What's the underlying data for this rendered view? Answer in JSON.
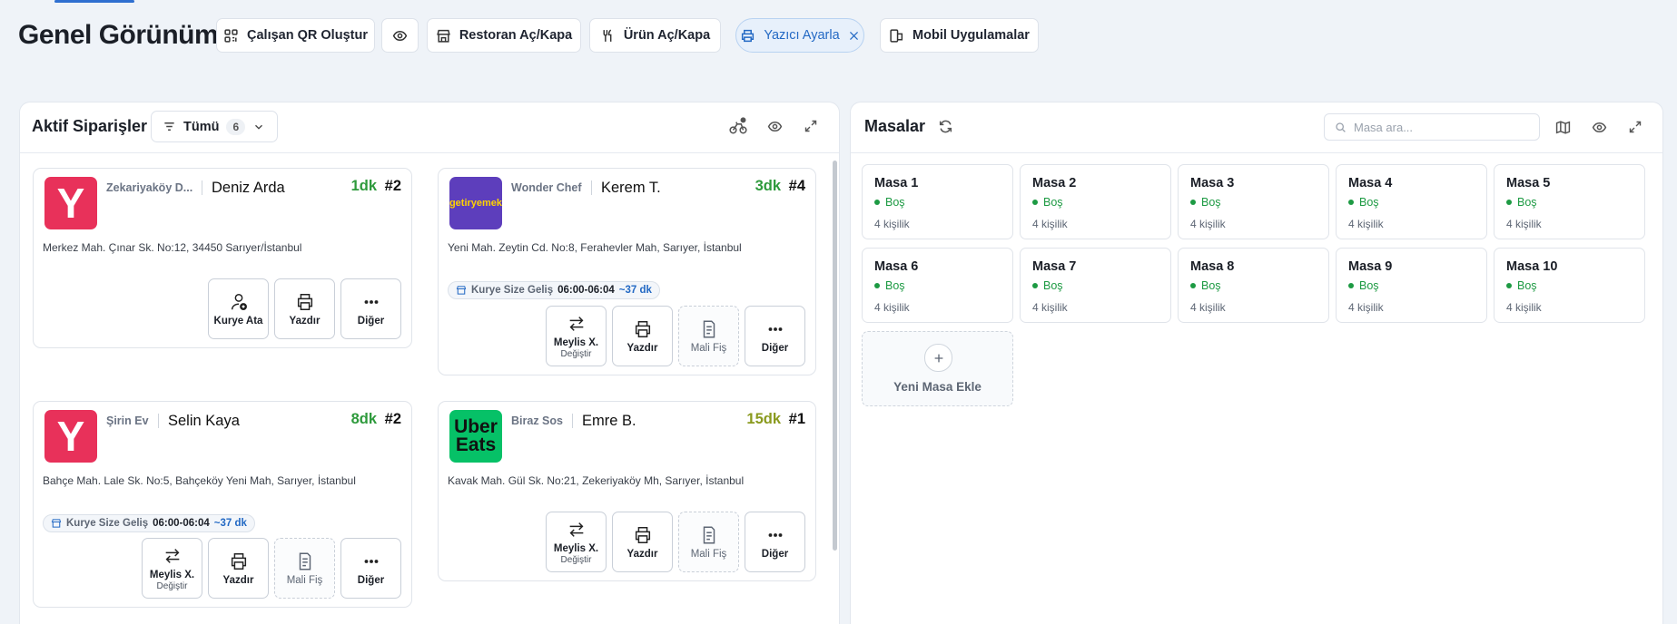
{
  "header": {
    "title": "Genel Görünüm",
    "actions": [
      "Çalışan QR Oluştur",
      "Restoran Aç/Kapa",
      "Ürün Aç/Kapa",
      "Yazıcı Ayarla",
      "Mobil Uygulamalar"
    ]
  },
  "orders_panel": {
    "title": "Aktif Siparişler",
    "filter": "Tümü",
    "count": 6,
    "orders": [
      {
        "logo": "Y",
        "logo_color": "#e8315a",
        "logo_text_color": "#ffffff",
        "store": "Zekariyaköy D...",
        "customer": "Deniz Arda",
        "time": "1dk",
        "time_color": "#2e9a3c",
        "number": "#2",
        "address": "Merkez Mah. Çınar Sk. No:12, 34450 Sarıyer/İstanbul",
        "buttons": [
          {
            "label": "Kurye Ata"
          },
          {
            "label": "Yazdır"
          },
          {
            "label": "Diğer"
          }
        ]
      },
      {
        "logo": "getiryemek",
        "logo_color": "#5d3ebc",
        "logo_text_color": "#ffd300",
        "store": "Wonder Chef",
        "customer": "Kerem T.",
        "time": "3dk",
        "time_color": "#2e9a3c",
        "number": "#4",
        "address": "Yeni Mah. Zeytin Cd. No:8, Ferahevler Mah, Sarıyer, İstanbul",
        "courier": {
          "label": "Kurye Size Geliş",
          "window": "06:00-06:04",
          "eta": "~37 dk"
        },
        "buttons": [
          {
            "label": "Meylis X.",
            "sub": "Değiştir"
          },
          {
            "label": "Yazdır"
          },
          {
            "label": "Mali Fiş",
            "dashed": true
          },
          {
            "label": "Diğer"
          }
        ]
      },
      {
        "logo": "Y",
        "logo_color": "#e8315a",
        "logo_text_color": "#ffffff",
        "store": "Şirin Ev",
        "customer": "Selin Kaya",
        "time": "8dk",
        "time_color": "#2e9a3c",
        "number": "#2",
        "address": "Bahçe Mah. Lale Sk. No:5, Bahçeköy Yeni Mah, Sarıyer, İstanbul",
        "courier": {
          "label": "Kurye Size Geliş",
          "window": "06:00-06:04",
          "eta": "~37 dk"
        },
        "buttons": [
          {
            "label": "Meylis X.",
            "sub": "Değiştir"
          },
          {
            "label": "Yazdır"
          },
          {
            "label": "Mali Fiş",
            "dashed": true
          },
          {
            "label": "Diğer"
          }
        ]
      },
      {
        "logo": "Uber Eats",
        "logo_color": "#06c167",
        "logo_text_color": "#111111",
        "store": "Biraz Sos",
        "customer": "Emre B.",
        "time": "15dk",
        "time_color": "#8a9a1e",
        "number": "#1",
        "address": "Kavak Mah. Gül Sk. No:21, Zekeriyaköy Mh, Sarıyer, İstanbul",
        "buttons": [
          {
            "label": "Meylis X.",
            "sub": "Değiştir"
          },
          {
            "label": "Yazdır"
          },
          {
            "label": "Mali Fiş",
            "dashed": true
          },
          {
            "label": "Diğer"
          }
        ]
      }
    ]
  },
  "tables_panel": {
    "title": "Masalar",
    "search_placeholder": "Masa ara...",
    "tables": [
      {
        "name": "Masa 1",
        "status": "Boş",
        "capacity": "4 kişilik"
      },
      {
        "name": "Masa 2",
        "status": "Boş",
        "capacity": "4 kişilik"
      },
      {
        "name": "Masa 3",
        "status": "Boş",
        "capacity": "4 kişilik"
      },
      {
        "name": "Masa 4",
        "status": "Boş",
        "capacity": "4 kişilik"
      },
      {
        "name": "Masa 5",
        "status": "Boş",
        "capacity": "4 kişilik"
      },
      {
        "name": "Masa 6",
        "status": "Boş",
        "capacity": "4 kişilik"
      },
      {
        "name": "Masa 7",
        "status": "Boş",
        "capacity": "4 kişilik"
      },
      {
        "name": "Masa 8",
        "status": "Boş",
        "capacity": "4 kişilik"
      },
      {
        "name": "Masa 9",
        "status": "Boş",
        "capacity": "4 kişilik"
      },
      {
        "name": "Masa 10",
        "status": "Boş",
        "capacity": "4 kişilik"
      }
    ],
    "add_label": "Yeni Masa Ekle"
  }
}
